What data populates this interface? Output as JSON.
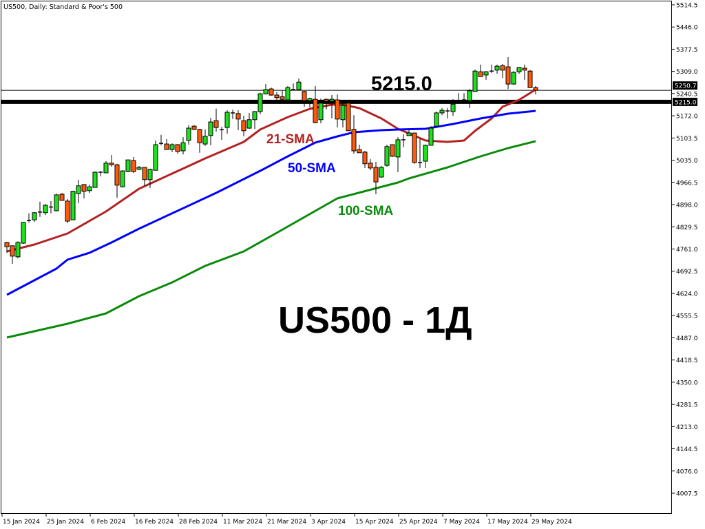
{
  "header": {
    "title": "US500, Daily:  Standard & Poor's 500"
  },
  "annotations": {
    "level_label": "5215.0",
    "sma21_label": "21-SMA",
    "sma50_label": "50-SMA",
    "sma100_label": "100-SMA",
    "watermark": "US500 - 1Д"
  },
  "colors": {
    "bull": "#1ee11e",
    "bear": "#ff5a0a",
    "sma21": "#b22222",
    "sma50": "#0000ff",
    "sma100": "#0a8a0a",
    "level": "#000000"
  },
  "chart_data": {
    "type": "candlestick",
    "title": "US500, Daily:  Standard & Poor's 500",
    "ylim": [
      4007.5,
      5514.5
    ],
    "y_ticks": [
      "5514.5",
      "5446.0",
      "5377.5",
      "5309.0",
      "5240.5",
      "5172.0",
      "5103.5",
      "5035.0",
      "4966.5",
      "4898.0",
      "4829.5",
      "4761.0",
      "4692.5",
      "4624.0",
      "4555.5",
      "4487.0",
      "4418.5",
      "4350.0",
      "4281.5",
      "4213.0",
      "4144.5",
      "4076.0",
      "4007.5"
    ],
    "x_ticks": [
      {
        "bar": 0,
        "label": "15 Jan 2024"
      },
      {
        "bar": 8,
        "label": "25 Jan 2024"
      },
      {
        "bar": 16,
        "label": "6 Feb 2024"
      },
      {
        "bar": 24,
        "label": "16 Feb 2024"
      },
      {
        "bar": 32,
        "label": "28 Feb 2024"
      },
      {
        "bar": 40,
        "label": "11 Mar 2024"
      },
      {
        "bar": 48,
        "label": "21 Mar 2024"
      },
      {
        "bar": 56,
        "label": "3 Apr 2024"
      },
      {
        "bar": 64,
        "label": "15 Apr 2024"
      },
      {
        "bar": 72,
        "label": "25 Apr 2024"
      },
      {
        "bar": 80,
        "label": "7 May 2024"
      },
      {
        "bar": 88,
        "label": "17 May 2024"
      },
      {
        "bar": 96,
        "label": "29 May 2024"
      }
    ],
    "ohlc_fields": [
      "open",
      "high",
      "low",
      "close"
    ],
    "ohlc": [
      [
        4781,
        4783,
        4749,
        4768
      ],
      [
        4771,
        4771,
        4715,
        4739
      ],
      [
        4737,
        4785,
        4732,
        4781
      ],
      [
        4779,
        4845,
        4777,
        4843
      ],
      [
        4848,
        4871,
        4843,
        4850
      ],
      [
        4851,
        4875,
        4845,
        4873
      ],
      [
        4874,
        4907,
        4860,
        4876
      ],
      [
        4873,
        4900,
        4866,
        4896
      ],
      [
        4890,
        4909,
        4871,
        4891
      ],
      [
        4879,
        4932,
        4877,
        4928
      ],
      [
        4930,
        4934,
        4911,
        4911
      ],
      [
        4909,
        4915,
        4841,
        4847
      ],
      [
        4851,
        4941,
        4851,
        4939
      ],
      [
        4932,
        4975,
        4902,
        4956
      ],
      [
        4960,
        4960,
        4917,
        4939
      ],
      [
        4941,
        4960,
        4934,
        4953
      ],
      [
        4951,
        5000,
        4951,
        4998
      ],
      [
        4997,
        5002,
        4985,
        4999
      ],
      [
        4996,
        5032,
        4996,
        5026
      ],
      [
        5026,
        5051,
        5015,
        5021
      ],
      [
        5021,
        5024,
        4919,
        4958
      ],
      [
        4953,
        5004,
        4951,
        5002
      ],
      [
        5000,
        5036,
        4998,
        5036
      ],
      [
        5034,
        5045,
        4996,
        5000
      ],
      [
        5007,
        5017,
        5004,
        5013
      ],
      [
        5013,
        5013,
        4956,
        4975
      ],
      [
        4975,
        5009,
        4949,
        5007
      ],
      [
        5004,
        5096,
        5004,
        5083
      ],
      [
        5086,
        5113,
        5081,
        5088
      ],
      [
        5085,
        5100,
        5068,
        5068
      ],
      [
        5068,
        5087,
        5060,
        5083
      ],
      [
        5083,
        5085,
        5055,
        5062
      ],
      [
        5064,
        5106,
        5053,
        5089
      ],
      [
        5096,
        5143,
        5083,
        5134
      ],
      [
        5140,
        5143,
        5128,
        5130
      ],
      [
        5130,
        5132,
        5058,
        5089
      ],
      [
        5085,
        5130,
        5079,
        5109
      ],
      [
        5111,
        5166,
        5081,
        5153
      ],
      [
        5157,
        5194,
        5123,
        5136
      ],
      [
        5127,
        5138,
        5098,
        5131
      ],
      [
        5136,
        5189,
        5117,
        5183
      ],
      [
        5180,
        5191,
        5162,
        5182
      ],
      [
        5179,
        5189,
        5128,
        5162
      ],
      [
        5157,
        5172,
        5109,
        5126
      ],
      [
        5134,
        5181,
        5132,
        5160
      ],
      [
        5160,
        5187,
        5132,
        5185
      ],
      [
        5185,
        5243,
        5177,
        5240
      ],
      [
        5240,
        5270,
        5238,
        5253
      ],
      [
        5255,
        5259,
        5234,
        5236
      ],
      [
        5236,
        5245,
        5221,
        5228
      ],
      [
        5231,
        5249,
        5219,
        5223
      ],
      [
        5221,
        5264,
        5219,
        5259
      ],
      [
        5252,
        5272,
        5251,
        5254
      ],
      [
        5253,
        5287,
        5251,
        5276
      ],
      [
        5247,
        5249,
        5200,
        5219
      ],
      [
        5219,
        5228,
        5198,
        5225
      ],
      [
        5223,
        5264,
        5149,
        5151
      ],
      [
        5160,
        5225,
        5149,
        5211
      ],
      [
        5223,
        5225,
        5192,
        5217
      ],
      [
        5217,
        5236,
        5164,
        5223
      ],
      [
        5221,
        5238,
        5136,
        5162
      ],
      [
        5160,
        5217,
        5136,
        5204
      ],
      [
        5211,
        5215,
        5126,
        5126
      ],
      [
        5130,
        5174,
        5055,
        5064
      ],
      [
        5068,
        5083,
        5058,
        5058
      ],
      [
        5060,
        5064,
        5011,
        5024
      ],
      [
        5026,
        5038,
        5004,
        5011
      ],
      [
        5013,
        5030,
        4930,
        4968
      ],
      [
        4983,
        5017,
        4981,
        5013
      ],
      [
        5019,
        5083,
        5015,
        5077
      ],
      [
        5083,
        5083,
        5045,
        5047
      ],
      [
        5045,
        5106,
        4998,
        5098
      ],
      [
        5096,
        5115,
        5075,
        5100
      ],
      [
        5111,
        5128,
        5111,
        5119
      ],
      [
        5119,
        5119,
        5024,
        5028
      ],
      [
        5027,
        5100,
        5011,
        5028
      ],
      [
        5032,
        5083,
        5011,
        5081
      ],
      [
        5081,
        5140,
        5081,
        5134
      ],
      [
        5140,
        5185,
        5138,
        5181
      ],
      [
        5181,
        5196,
        5174,
        5189
      ],
      [
        5186,
        5196,
        5164,
        5188
      ],
      [
        5185,
        5223,
        5172,
        5208
      ],
      [
        5218,
        5242,
        5217,
        5220
      ],
      [
        5219,
        5242,
        5219,
        5223
      ],
      [
        5219,
        5255,
        5196,
        5249
      ],
      [
        5247,
        5315,
        5247,
        5310
      ],
      [
        5308,
        5330,
        5293,
        5293
      ],
      [
        5298,
        5310,
        5283,
        5308
      ],
      [
        5309,
        5330,
        5304,
        5311
      ],
      [
        5313,
        5330,
        5302,
        5325
      ],
      [
        5327,
        5332,
        5289,
        5313
      ],
      [
        5323,
        5353,
        5255,
        5270
      ],
      [
        5270,
        5310,
        5268,
        5306
      ],
      [
        5308,
        5323,
        5302,
        5321
      ],
      [
        5319,
        5330,
        5283,
        5313
      ],
      [
        5310,
        5313,
        5259,
        5259
      ],
      [
        5259,
        5264,
        5238,
        5251
      ]
    ],
    "series": [
      {
        "name": "21-SMA",
        "points": [
          [
            0,
            4753.6
          ],
          [
            5,
            4774.8
          ],
          [
            11,
            4808.9
          ],
          [
            18,
            4876.9
          ],
          [
            24,
            4947.0
          ],
          [
            30,
            4993.8
          ],
          [
            36,
            5040.5
          ],
          [
            43,
            5091.5
          ],
          [
            46,
            5129.8
          ],
          [
            51,
            5168.1
          ],
          [
            55,
            5193.6
          ],
          [
            59,
            5206.4
          ],
          [
            61,
            5206.4
          ],
          [
            64,
            5195.7
          ],
          [
            68,
            5163.8
          ],
          [
            71,
            5131.9
          ],
          [
            74,
            5110.7
          ],
          [
            76,
            5095.8
          ],
          [
            80,
            5091.5
          ],
          [
            83,
            5095.8
          ],
          [
            85,
            5125.6
          ],
          [
            88,
            5163.8
          ],
          [
            90,
            5200.0
          ],
          [
            93,
            5221.2
          ],
          [
            96,
            5253.0
          ]
        ]
      },
      {
        "name": "50-SMA",
        "points": [
          [
            0,
            4619.7
          ],
          [
            9,
            4700.5
          ],
          [
            11,
            4728.1
          ],
          [
            15,
            4749.3
          ],
          [
            19,
            4781.2
          ],
          [
            24,
            4823.7
          ],
          [
            38,
            4934.3
          ],
          [
            46,
            5002.3
          ],
          [
            51,
            5046.9
          ],
          [
            56,
            5089.4
          ],
          [
            60,
            5108.5
          ],
          [
            63,
            5121.3
          ],
          [
            68,
            5127.7
          ],
          [
            71,
            5129.8
          ],
          [
            76,
            5131.9
          ],
          [
            81,
            5146.8
          ],
          [
            86,
            5163.8
          ],
          [
            91,
            5178.7
          ],
          [
            96,
            5187.2
          ]
        ]
      },
      {
        "name": "100-SMA",
        "points": [
          [
            0,
            4487.9
          ],
          [
            11,
            4530.4
          ],
          [
            18,
            4562.3
          ],
          [
            24,
            4615.4
          ],
          [
            30,
            4657.9
          ],
          [
            36,
            4709.0
          ],
          [
            43,
            4753.6
          ],
          [
            49,
            4811.0
          ],
          [
            60,
            4917.3
          ],
          [
            71,
            4966.1
          ],
          [
            73,
            4978.9
          ],
          [
            80,
            5012.9
          ],
          [
            86,
            5046.9
          ],
          [
            91,
            5072.4
          ],
          [
            96,
            5093.7
          ]
        ]
      }
    ],
    "levels": [
      {
        "value": 5250.7,
        "label": "5250.7",
        "style": "thin"
      },
      {
        "value": 5215.0,
        "label": "5215.0",
        "style": "thick"
      }
    ],
    "hidden_tick": "5240.5",
    "grid": false
  }
}
